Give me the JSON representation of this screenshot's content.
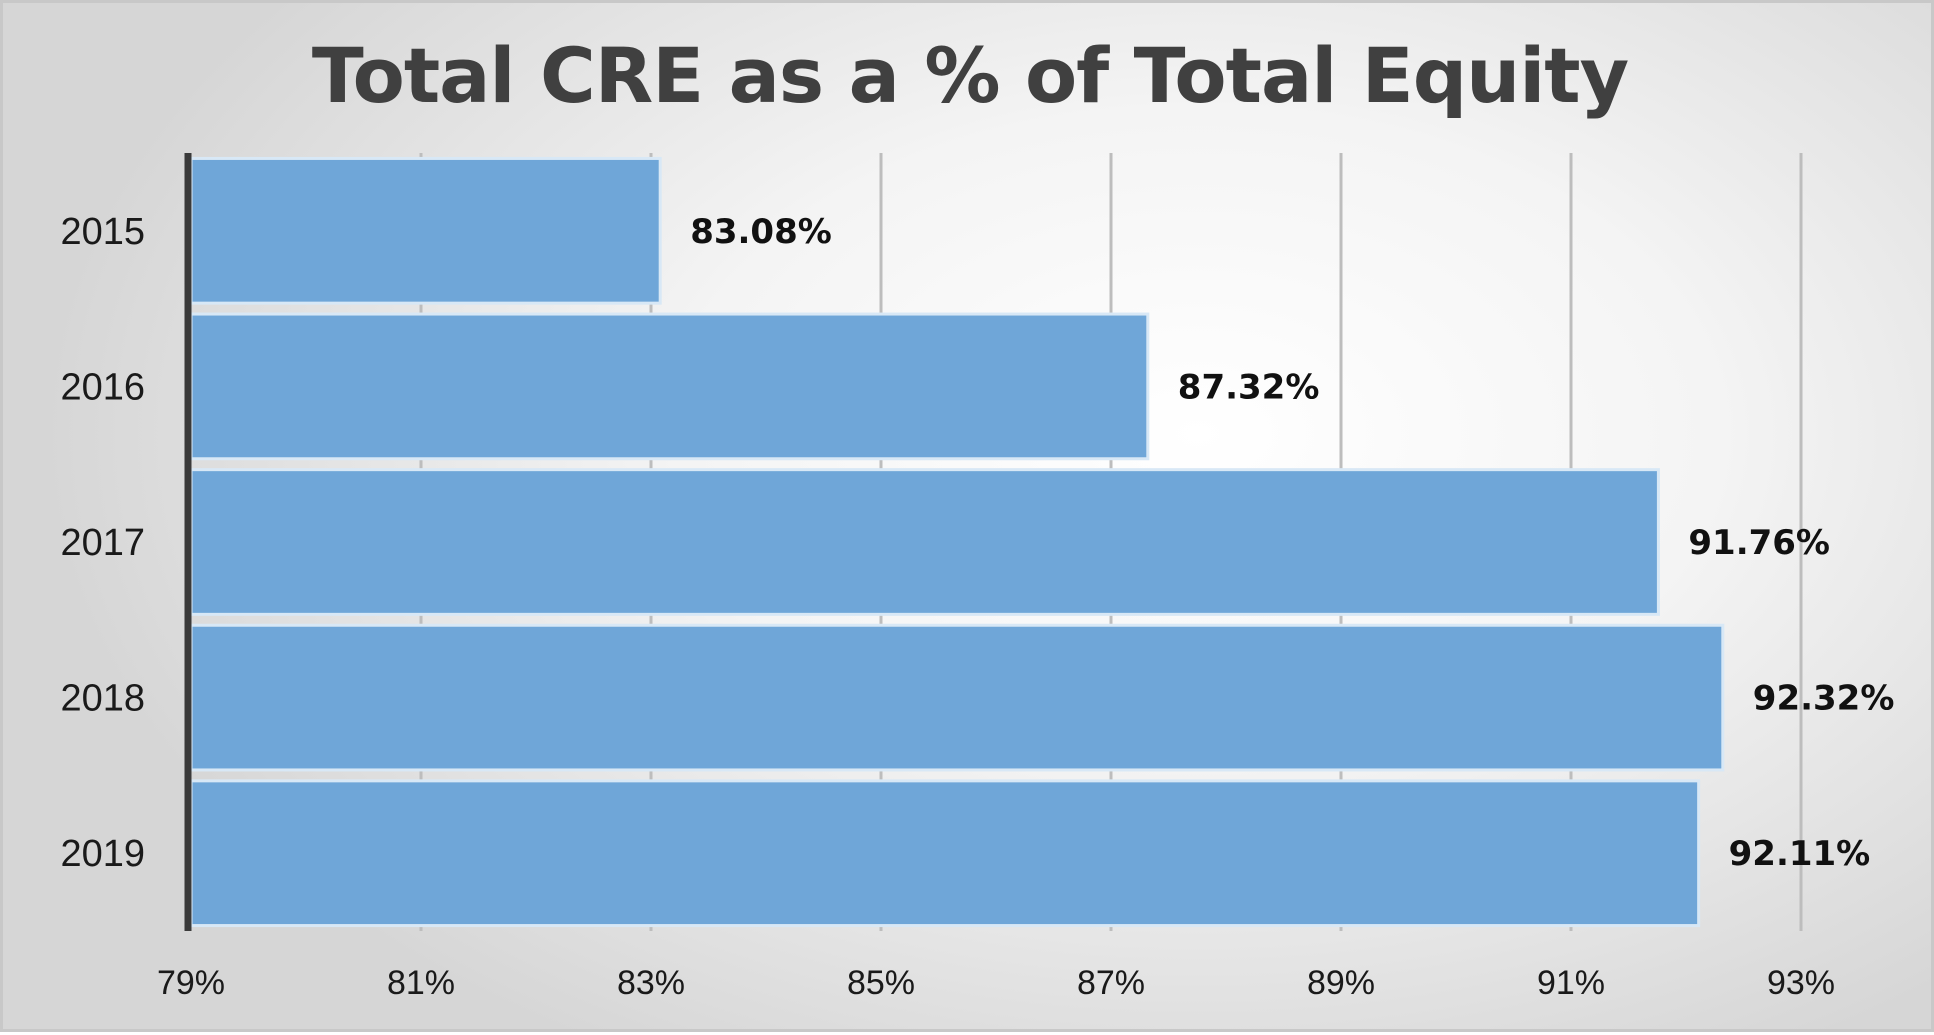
{
  "chart_data": {
    "type": "bar",
    "orientation": "horizontal",
    "title": "Total CRE as a % of Total Equity",
    "categories": [
      "2015",
      "2016",
      "2017",
      "2018",
      "2019"
    ],
    "values": [
      83.08,
      87.32,
      91.76,
      92.32,
      92.11
    ],
    "data_labels": [
      "83.08%",
      "87.32%",
      "91.76%",
      "92.32%",
      "92.11%"
    ],
    "xlim": [
      79,
      93
    ],
    "x_ticks": [
      79,
      81,
      83,
      85,
      87,
      89,
      91,
      93
    ],
    "x_tick_labels": [
      "79%",
      "81%",
      "83%",
      "85%",
      "87%",
      "89%",
      "91%",
      "93%"
    ],
    "grid": true,
    "legend": "none",
    "bar_color": "#6fa6d8",
    "bar_edge_color": "#d8e8f6"
  }
}
